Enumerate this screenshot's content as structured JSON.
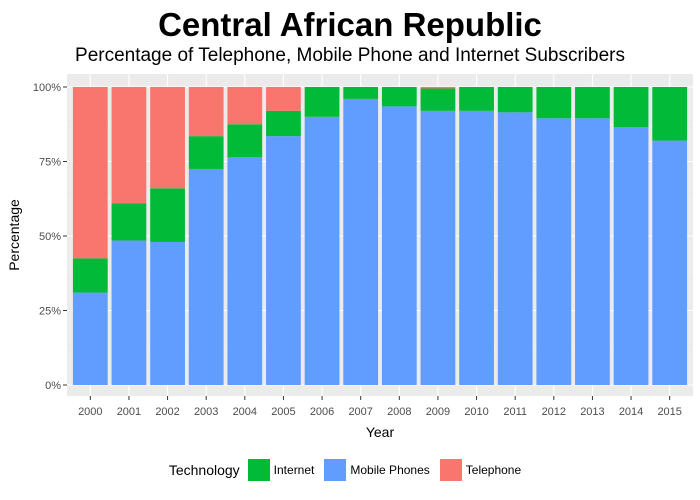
{
  "header": {
    "title": "Central African Republic",
    "subtitle": "Percentage of Telephone, Mobile Phone and Internet Subscribers"
  },
  "legend": {
    "title": "Technology",
    "items": [
      {
        "label": "Internet",
        "color": "#00ba38"
      },
      {
        "label": "Mobile Phones",
        "color": "#619cff"
      },
      {
        "label": "Telephone",
        "color": "#f8766d"
      }
    ]
  },
  "chart_data": {
    "type": "bar",
    "stacked": true,
    "title": "Central African Republic",
    "subtitle": "Percentage of Telephone, Mobile Phone and Internet Subscribers",
    "xlabel": "Year",
    "ylabel": "Percentage",
    "ylim": [
      0,
      100
    ],
    "yticks": [
      "0%",
      "25%",
      "50%",
      "75%",
      "100%"
    ],
    "grid": true,
    "legend_position": "bottom",
    "categories": [
      "2000",
      "2001",
      "2002",
      "2003",
      "2004",
      "2005",
      "2006",
      "2007",
      "2008",
      "2009",
      "2010",
      "2011",
      "2012",
      "2013",
      "2014",
      "2015"
    ],
    "series": [
      {
        "name": "Mobile Phones",
        "color": "#619cff",
        "values": [
          31,
          48.5,
          48,
          72.5,
          76.5,
          83.5,
          90,
          96,
          93.5,
          92,
          92,
          91.5,
          89.5,
          89.5,
          86.5,
          82
        ]
      },
      {
        "name": "Internet",
        "color": "#00ba38",
        "values": [
          11.5,
          12.5,
          18,
          11,
          11,
          8.5,
          10,
          4,
          6.5,
          7.5,
          8,
          8.5,
          10.5,
          10.5,
          13.5,
          18
        ]
      },
      {
        "name": "Telephone",
        "color": "#f8766d",
        "values": [
          57.5,
          39,
          34,
          16.5,
          12.5,
          8,
          0,
          0,
          0,
          0.5,
          0,
          0,
          0,
          0,
          0,
          0
        ]
      }
    ]
  }
}
